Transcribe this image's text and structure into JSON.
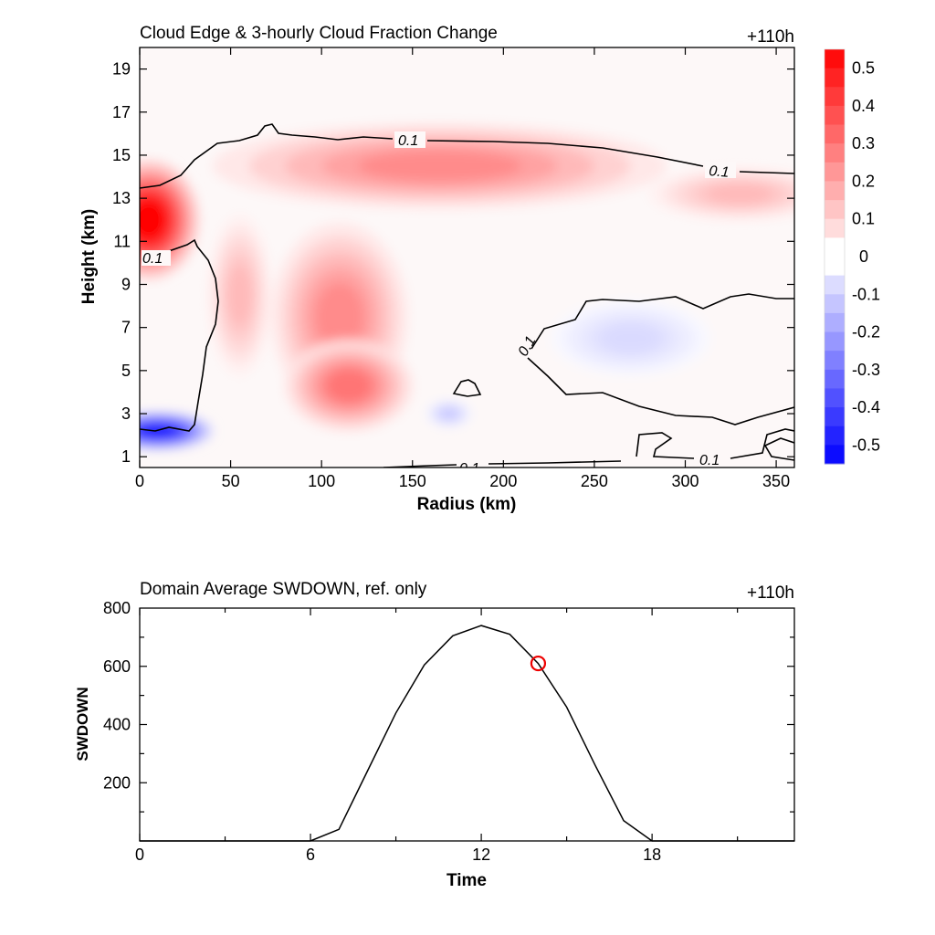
{
  "chart_data": [
    {
      "type": "heatmap",
      "title": "Cloud Edge & 3-hourly Cloud Fraction Change",
      "time_label": "+110h",
      "xlabel": "Radius (km)",
      "ylabel": "Height (km)",
      "xlim": [
        0,
        360
      ],
      "ylim": [
        0.5,
        20
      ],
      "xticks": [
        0,
        50,
        100,
        150,
        200,
        250,
        300,
        350
      ],
      "yticks": [
        1,
        3,
        5,
        7,
        9,
        11,
        13,
        15,
        17,
        19
      ],
      "colorbar": {
        "ticks": [
          0.5,
          0.4,
          0.3,
          0.2,
          0.1,
          0,
          -0.1,
          -0.2,
          -0.3,
          -0.4,
          -0.5
        ],
        "tick_labels": [
          "0.5",
          "0.4",
          "0.3",
          "0.2",
          "0.1",
          "0",
          "-0.1",
          "-0.2",
          "-0.3",
          "-0.4",
          "-0.5"
        ],
        "range": [
          -0.55,
          0.55
        ],
        "step": 0.05,
        "positive_color": "#ff0000",
        "negative_color": "#0000ff"
      },
      "contour_level": 0.1,
      "contour_labels": [
        "0.1",
        "0.1",
        "0.1",
        "0.1",
        "0.1",
        "0.1"
      ],
      "features": [
        {
          "kind": "increase",
          "r": 5,
          "h": 12,
          "amplitude": 0.55
        },
        {
          "kind": "increase",
          "r": 165,
          "h": 14.5,
          "amplitude": 0.25
        },
        {
          "kind": "increase",
          "r": 110,
          "h": 7.5,
          "amplitude": 0.25
        },
        {
          "kind": "increase",
          "r": 115,
          "h": 4.3,
          "amplitude": 0.3
        },
        {
          "kind": "increase",
          "r": 55,
          "h": 8.5,
          "amplitude": 0.15
        },
        {
          "kind": "increase",
          "r": 330,
          "h": 13.2,
          "amplitude": 0.15
        },
        {
          "kind": "decrease",
          "r": 10,
          "h": 2.2,
          "amplitude": -0.5
        },
        {
          "kind": "decrease",
          "r": 270,
          "h": 6.5,
          "amplitude": -0.08
        },
        {
          "kind": "decrease",
          "r": 170,
          "h": 3,
          "amplitude": -0.12
        }
      ]
    },
    {
      "type": "line",
      "title": "Domain Average SWDOWN, ref. only",
      "time_label": "+110h",
      "xlabel": "Time",
      "ylabel": "SWDOWN",
      "xlim": [
        0,
        23
      ],
      "ylim": [
        0,
        800
      ],
      "xticks": [
        0,
        6,
        12,
        18
      ],
      "yticks": [
        200,
        400,
        600,
        800
      ],
      "series": [
        {
          "x": [
            0,
            1,
            2,
            3,
            4,
            5,
            6,
            7,
            8,
            9,
            10,
            11,
            12,
            13,
            14,
            15,
            16,
            17,
            18,
            19,
            20,
            21,
            22,
            23
          ],
          "values": [
            0,
            0,
            0,
            0,
            0,
            0,
            0,
            40,
            240,
            440,
            605,
            705,
            740,
            710,
            610,
            460,
            260,
            70,
            0,
            0,
            0,
            0,
            0,
            0
          ],
          "color": "#000000"
        }
      ],
      "marker": {
        "x": 14.0,
        "y": 610,
        "color": "#ee0000"
      }
    }
  ]
}
